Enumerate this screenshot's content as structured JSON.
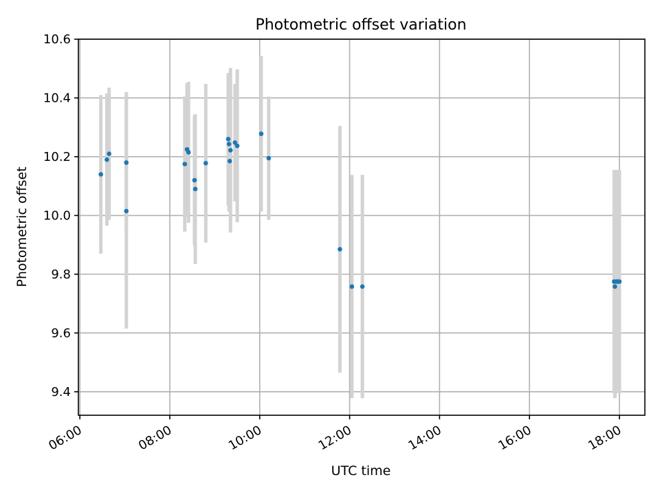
{
  "chart_data": {
    "type": "scatter",
    "title": "Photometric offset variation",
    "xlabel": "UTC time",
    "ylabel": "Photometric offset",
    "x_is_time": true,
    "xlim": [
      "05:58",
      "18:34"
    ],
    "ylim": [
      9.32,
      10.6
    ],
    "x_ticks": [
      "06:00",
      "08:00",
      "10:00",
      "12:00",
      "14:00",
      "16:00",
      "18:00"
    ],
    "y_ticks": [
      9.4,
      9.6,
      9.8,
      10.0,
      10.2,
      10.4,
      10.6
    ],
    "y_tick_labels": [
      "9.4",
      "9.6",
      "9.8",
      "10.0",
      "10.2",
      "10.4",
      "10.6"
    ],
    "grid": true,
    "point_color": "#1f77b4",
    "errorbar_color": "#d3d3d3",
    "points": [
      {
        "t": "06:28",
        "y": 10.14,
        "err": 0.27
      },
      {
        "t": "06:36",
        "y": 10.19,
        "err": 0.225
      },
      {
        "t": "06:39",
        "y": 10.21,
        "err": 0.225
      },
      {
        "t": "07:02",
        "y": 10.18,
        "err": 0.24
      },
      {
        "t": "07:02",
        "y": 10.015,
        "err": 0.4
      },
      {
        "t": "08:20",
        "y": 10.175,
        "err": 0.23
      },
      {
        "t": "08:23",
        "y": 10.225,
        "err": 0.225
      },
      {
        "t": "08:25",
        "y": 10.215,
        "err": 0.24
      },
      {
        "t": "08:33",
        "y": 10.12,
        "err": 0.22
      },
      {
        "t": "08:34",
        "y": 10.09,
        "err": 0.255
      },
      {
        "t": "08:48",
        "y": 10.178,
        "err": 0.27
      },
      {
        "t": "09:18",
        "y": 10.26,
        "err": 0.225
      },
      {
        "t": "09:19",
        "y": 10.243,
        "err": 0.23
      },
      {
        "t": "09:20",
        "y": 10.185,
        "err": 0.17
      },
      {
        "t": "09:21",
        "y": 10.222,
        "err": 0.28
      },
      {
        "t": "09:27",
        "y": 10.248,
        "err": 0.2
      },
      {
        "t": "09:30",
        "y": 10.237,
        "err": 0.26
      },
      {
        "t": "10:02",
        "y": 10.278,
        "err": 0.265
      },
      {
        "t": "10:12",
        "y": 10.195,
        "err": 0.21
      },
      {
        "t": "11:47",
        "y": 9.885,
        "err": 0.42
      },
      {
        "t": "12:03",
        "y": 9.758,
        "err": 0.38
      },
      {
        "t": "12:17",
        "y": 9.758,
        "err": 0.38
      },
      {
        "t": "17:53",
        "y": 9.775,
        "err": 0.38
      },
      {
        "t": "17:54",
        "y": 9.758,
        "err": 0.38
      },
      {
        "t": "17:56",
        "y": 9.775,
        "err": 0.38
      },
      {
        "t": "17:58",
        "y": 9.775,
        "err": 0.38
      },
      {
        "t": "18:00",
        "y": 9.775,
        "err": 0.38
      }
    ]
  }
}
